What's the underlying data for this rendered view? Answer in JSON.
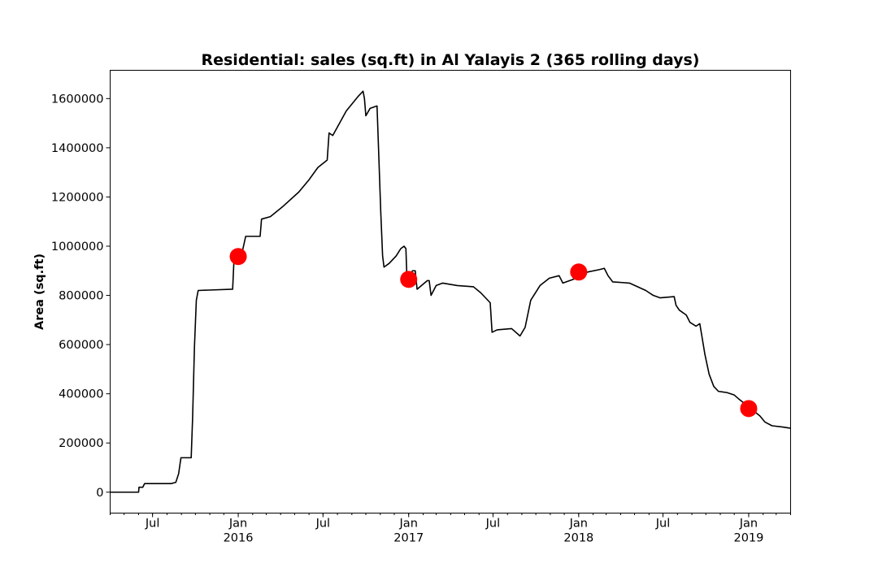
{
  "chart_data": {
    "type": "line",
    "title": "Residential: sales (sq.ft) in Al Yalayis 2 (365 rolling days)",
    "xlabel": "",
    "ylabel": "Area (sq.ft)",
    "xlim": [
      "2015-04-01",
      "2019-04-01"
    ],
    "ylim": [
      -85000,
      1715000
    ],
    "grid": false,
    "yticks": [
      0,
      200000,
      400000,
      600000,
      800000,
      1000000,
      1200000,
      1400000,
      1600000
    ],
    "ytick_labels": [
      "0",
      "200000",
      "400000",
      "600000",
      "800000",
      "1000000",
      "1200000",
      "1400000",
      "1600000"
    ],
    "xticks_major": [
      {
        "date": "2015-07-01",
        "label": "Jul",
        "year": ""
      },
      {
        "date": "2016-01-01",
        "label": "Jan",
        "year": "2016"
      },
      {
        "date": "2016-07-01",
        "label": "Jul",
        "year": ""
      },
      {
        "date": "2017-01-01",
        "label": "Jan",
        "year": "2017"
      },
      {
        "date": "2017-07-01",
        "label": "Jul",
        "year": ""
      },
      {
        "date": "2018-01-01",
        "label": "Jan",
        "year": "2018"
      },
      {
        "date": "2018-07-01",
        "label": "Jul",
        "year": ""
      },
      {
        "date": "2019-01-01",
        "label": "Jan",
        "year": "2019"
      }
    ],
    "series": [
      {
        "color": "#000000",
        "points": [
          [
            "2015-04-01",
            0
          ],
          [
            "2015-06-01",
            0
          ],
          [
            "2015-06-02",
            20000
          ],
          [
            "2015-06-10",
            20000
          ],
          [
            "2015-06-14",
            35000
          ],
          [
            "2015-08-10",
            35000
          ],
          [
            "2015-08-20",
            40000
          ],
          [
            "2015-08-26",
            75000
          ],
          [
            "2015-08-31",
            140000
          ],
          [
            "2015-09-22",
            140000
          ],
          [
            "2015-09-25",
            300000
          ],
          [
            "2015-09-29",
            590000
          ],
          [
            "2015-10-03",
            780000
          ],
          [
            "2015-10-07",
            820000
          ],
          [
            "2015-12-20",
            825000
          ],
          [
            "2015-12-23",
            950000
          ],
          [
            "2016-01-10",
            980000
          ],
          [
            "2016-01-17",
            1040000
          ],
          [
            "2016-02-17",
            1040000
          ],
          [
            "2016-02-20",
            1110000
          ],
          [
            "2016-03-10",
            1120000
          ],
          [
            "2016-04-05",
            1160000
          ],
          [
            "2016-05-10",
            1220000
          ],
          [
            "2016-06-01",
            1270000
          ],
          [
            "2016-06-20",
            1320000
          ],
          [
            "2016-07-10",
            1350000
          ],
          [
            "2016-07-14",
            1460000
          ],
          [
            "2016-07-22",
            1450000
          ],
          [
            "2016-08-20",
            1550000
          ],
          [
            "2016-09-15",
            1610000
          ],
          [
            "2016-09-25",
            1630000
          ],
          [
            "2016-09-28",
            1600000
          ],
          [
            "2016-10-01",
            1530000
          ],
          [
            "2016-10-10",
            1560000
          ],
          [
            "2016-10-25",
            1570000
          ],
          [
            "2016-10-28",
            1410000
          ],
          [
            "2016-11-02",
            1140000
          ],
          [
            "2016-11-06",
            960000
          ],
          [
            "2016-11-09",
            915000
          ],
          [
            "2016-11-20",
            930000
          ],
          [
            "2016-12-05",
            960000
          ],
          [
            "2016-12-15",
            990000
          ],
          [
            "2016-12-22",
            1000000
          ],
          [
            "2016-12-26",
            990000
          ],
          [
            "2016-12-28",
            880000
          ],
          [
            "2017-01-05",
            880000
          ],
          [
            "2017-01-09",
            900000
          ],
          [
            "2017-01-15",
            900000
          ],
          [
            "2017-01-19",
            825000
          ],
          [
            "2017-02-10",
            860000
          ],
          [
            "2017-02-14",
            860000
          ],
          [
            "2017-02-18",
            800000
          ],
          [
            "2017-03-01",
            840000
          ],
          [
            "2017-03-15",
            850000
          ],
          [
            "2017-04-15",
            840000
          ],
          [
            "2017-05-20",
            835000
          ],
          [
            "2017-06-05",
            810000
          ],
          [
            "2017-06-25",
            770000
          ],
          [
            "2017-06-29",
            650000
          ],
          [
            "2017-07-10",
            660000
          ],
          [
            "2017-08-10",
            665000
          ],
          [
            "2017-08-28",
            635000
          ],
          [
            "2017-09-08",
            670000
          ],
          [
            "2017-09-20",
            780000
          ],
          [
            "2017-10-10",
            840000
          ],
          [
            "2017-10-30",
            870000
          ],
          [
            "2017-11-20",
            880000
          ],
          [
            "2017-11-28",
            850000
          ],
          [
            "2017-12-20",
            865000
          ],
          [
            "2018-01-05",
            880000
          ],
          [
            "2018-01-20",
            895000
          ],
          [
            "2018-02-15",
            905000
          ],
          [
            "2018-02-25",
            910000
          ],
          [
            "2018-03-05",
            880000
          ],
          [
            "2018-03-15",
            855000
          ],
          [
            "2018-04-20",
            850000
          ],
          [
            "2018-05-25",
            820000
          ],
          [
            "2018-06-10",
            800000
          ],
          [
            "2018-06-25",
            790000
          ],
          [
            "2018-07-25",
            795000
          ],
          [
            "2018-07-29",
            760000
          ],
          [
            "2018-08-05",
            740000
          ],
          [
            "2018-08-20",
            720000
          ],
          [
            "2018-08-28",
            690000
          ],
          [
            "2018-09-10",
            675000
          ],
          [
            "2018-09-18",
            685000
          ],
          [
            "2018-09-22",
            640000
          ],
          [
            "2018-09-29",
            560000
          ],
          [
            "2018-10-08",
            480000
          ],
          [
            "2018-10-18",
            430000
          ],
          [
            "2018-10-28",
            410000
          ],
          [
            "2018-11-15",
            405000
          ],
          [
            "2018-12-01",
            395000
          ],
          [
            "2018-12-10",
            380000
          ],
          [
            "2018-12-20",
            365000
          ],
          [
            "2019-01-01",
            355000
          ],
          [
            "2019-01-12",
            330000
          ],
          [
            "2019-01-25",
            310000
          ],
          [
            "2019-02-05",
            285000
          ],
          [
            "2019-02-20",
            270000
          ],
          [
            "2019-03-15",
            265000
          ],
          [
            "2019-04-01",
            260000
          ]
        ]
      }
    ],
    "markers": {
      "color": "#ff0000",
      "points": [
        [
          "2016-01-01",
          958000
        ],
        [
          "2017-01-01",
          865000
        ],
        [
          "2018-01-01",
          895000
        ],
        [
          "2019-01-01",
          340000
        ]
      ]
    }
  }
}
